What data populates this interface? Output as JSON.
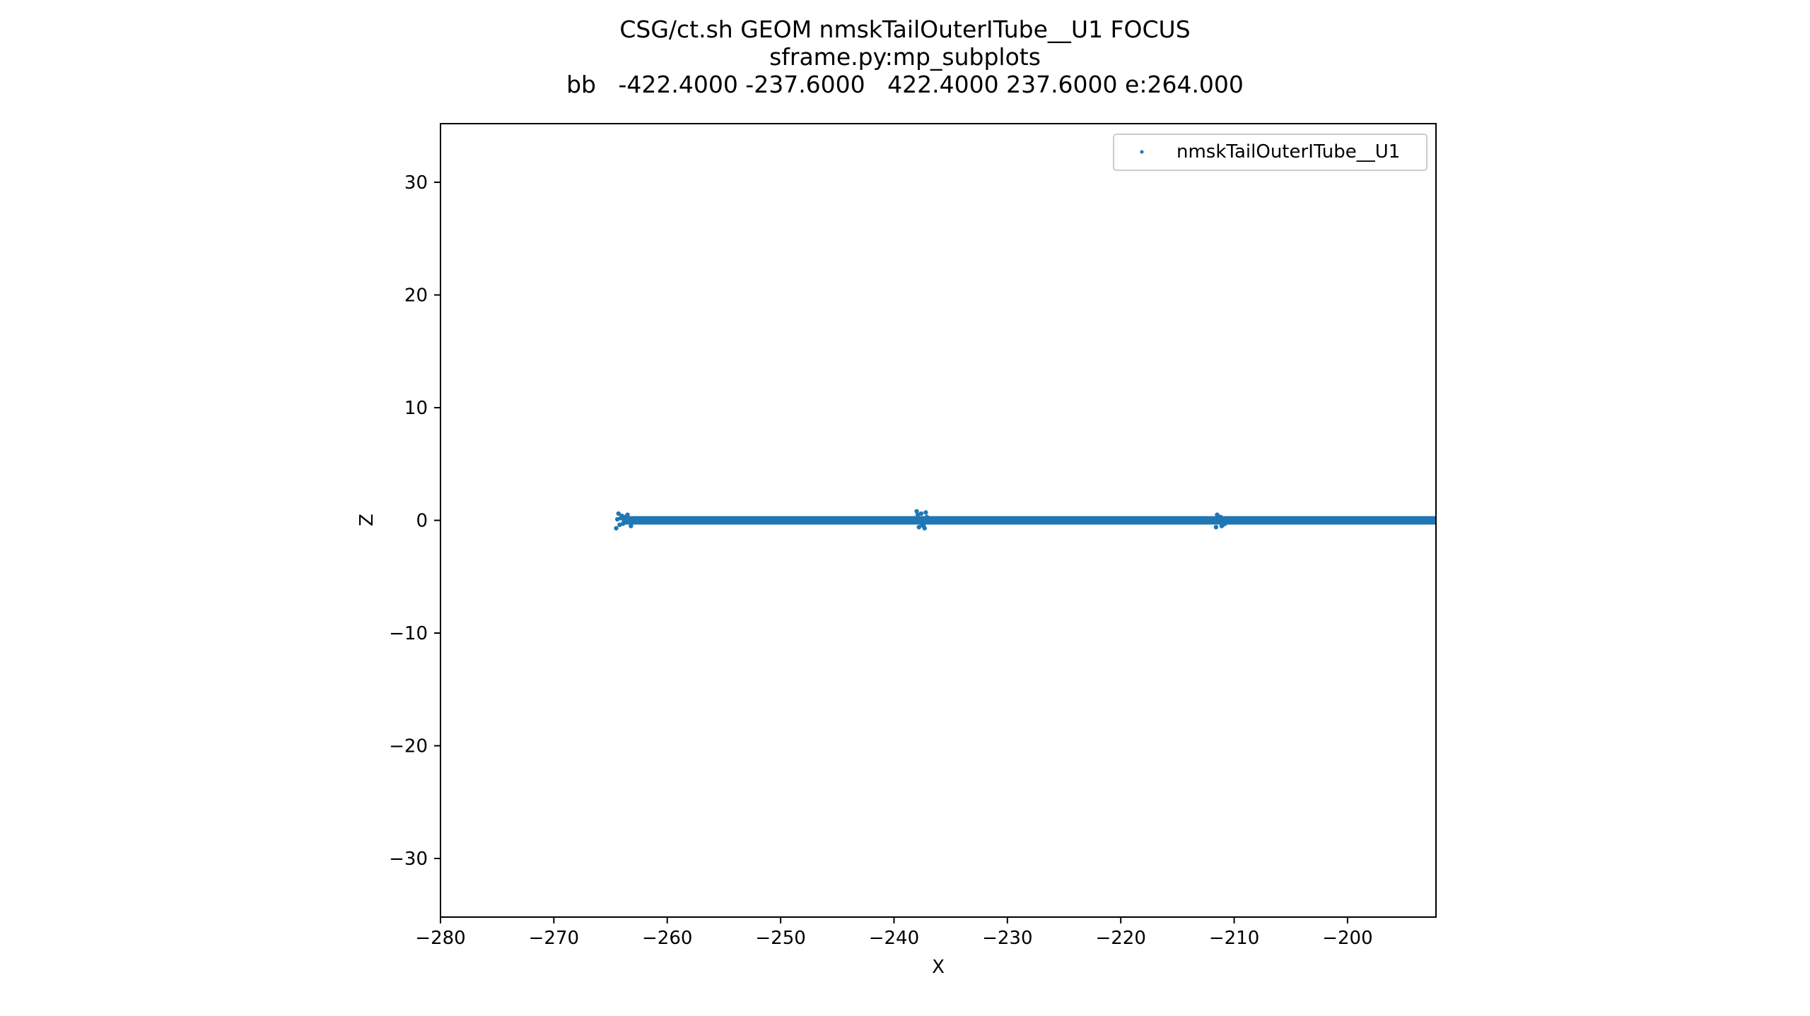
{
  "chart_data": {
    "type": "scatter",
    "title_lines": [
      "CSG/ct.sh GEOM nmskTailOuterITube__U1 FOCUS",
      "sframe.py:mp_subplots",
      "bb   -422.4000 -237.6000   422.4000 237.6000 e:264.000"
    ],
    "xlabel": "X",
    "ylabel": "Z",
    "xlim": [
      -280,
      -192.2
    ],
    "ylim": [
      -35.2,
      35.2
    ],
    "xticks": [
      -280,
      -270,
      -260,
      -250,
      -240,
      -230,
      -220,
      -210,
      -200
    ],
    "xtick_labels": [
      "−280",
      "−270",
      "−260",
      "−250",
      "−240",
      "−230",
      "−220",
      "−210",
      "−200"
    ],
    "yticks": [
      30,
      20,
      10,
      0,
      -10,
      -20,
      -30
    ],
    "ytick_labels": [
      "30",
      "20",
      "10",
      "0",
      "−10",
      "−20",
      "−30"
    ],
    "grid": false,
    "legend_position": "top-right",
    "series": [
      {
        "name": "nmskTailOuterITube__U1",
        "color": "#1f77b4",
        "band": {
          "x_start": -264.0,
          "x_end": -192.2,
          "z": 0
        },
        "clusters": [
          {
            "x": [
              -264.3,
              -264.0,
              -263.7,
              -264.5,
              -263.2,
              -264.1,
              -263.9,
              -264.2,
              -263.5,
              -264.4
            ],
            "z": [
              0.6,
              0.4,
              0.3,
              -0.7,
              -0.5,
              0.2,
              -0.3,
              -0.4,
              0.5,
              0.1
            ]
          },
          {
            "x": [
              -238.0,
              -237.6,
              -237.2,
              -237.8,
              -237.4,
              -237.1,
              -238.2,
              -237.5,
              -237.9,
              -237.3
            ],
            "z": [
              0.8,
              0.6,
              0.7,
              -0.6,
              -0.5,
              0.3,
              0.2,
              -0.4,
              0.5,
              -0.7
            ]
          },
          {
            "x": [
              -211.5,
              -211.2,
              -211.0,
              -211.6,
              -211.3,
              -210.8,
              -211.4,
              -211.1
            ],
            "z": [
              0.5,
              0.3,
              -0.4,
              -0.6,
              0.2,
              -0.3,
              0.1,
              -0.5
            ]
          }
        ]
      }
    ]
  }
}
